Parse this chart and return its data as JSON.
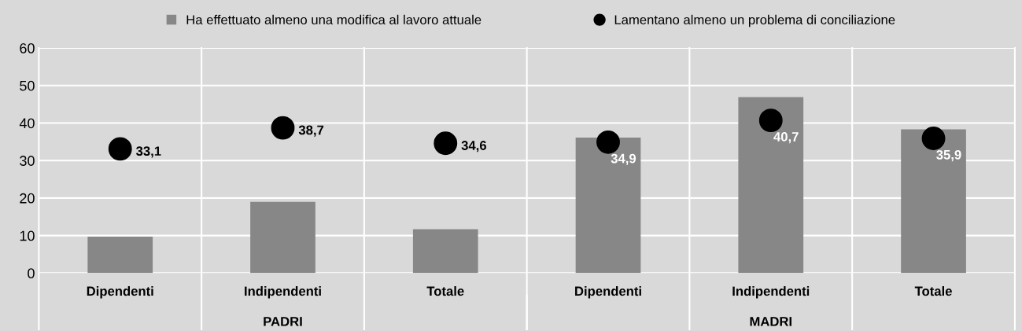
{
  "chart_data": {
    "type": "bar",
    "categories": [
      "Dipendenti",
      "Indipendenti",
      "Totale",
      "Dipendenti",
      "Indipendenti",
      "Totale"
    ],
    "series": [
      {
        "name": "Ha effettuato almeno una modifica al lavoro attuale",
        "color": "#878787",
        "values": [
          9.7,
          19.0,
          11.7,
          36.1,
          46.9,
          38.3
        ]
      },
      {
        "name": "Lamentano almeno un problema di conciliazione",
        "type": "scatter",
        "color": "#000000",
        "values": [
          33.1,
          38.7,
          34.6,
          34.9,
          40.7,
          35.9
        ],
        "value_labels": [
          "33,1",
          "38,7",
          "34,6",
          "34,9",
          "40,7",
          "35,9"
        ]
      }
    ],
    "annotations": [
      "PADRI",
      "MADRI"
    ],
    "ylim": [
      0,
      60
    ],
    "yticks": [
      0,
      10,
      20,
      30,
      40,
      50,
      60
    ],
    "grid": true,
    "legend": "top",
    "marker": "circle"
  }
}
